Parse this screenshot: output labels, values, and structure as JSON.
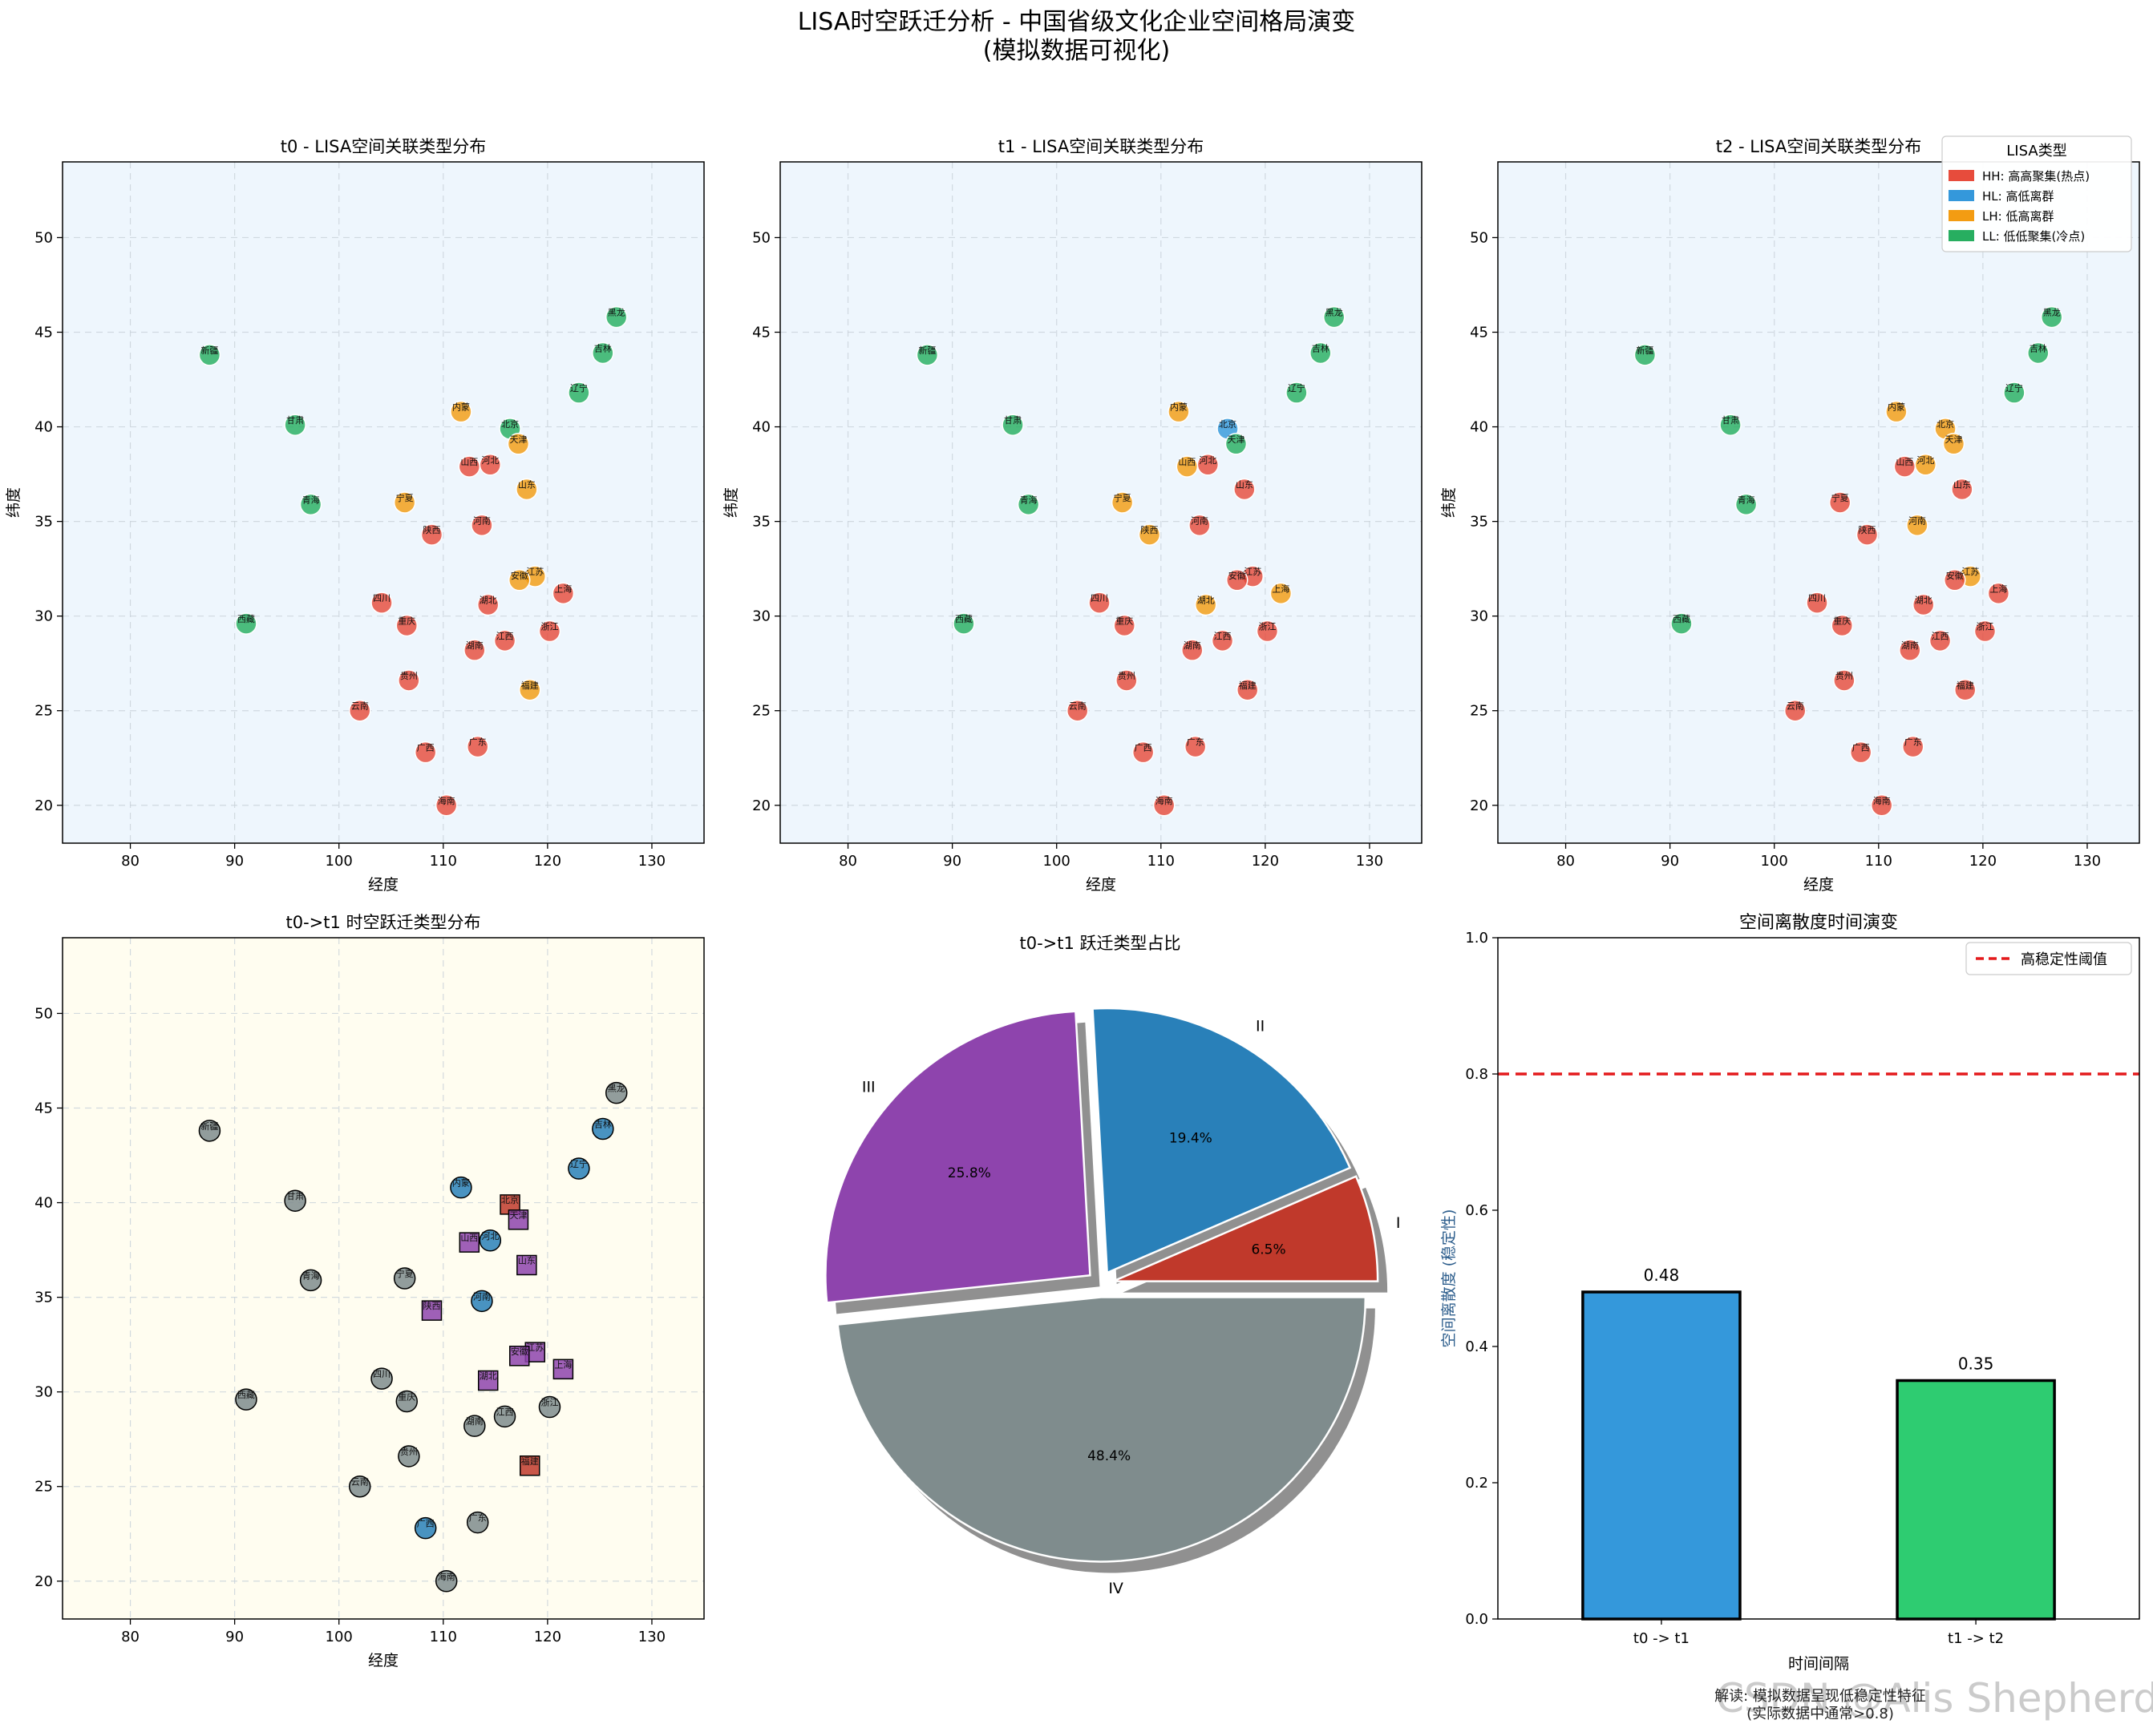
{
  "title_line1": "LISA时空跃迁分析 - 中国省级文化企业空间格局演变",
  "title_line2": "(模拟数据可视化)",
  "footnote_line1": "解读: 模拟数据呈现低稳定性特征",
  "footnote_line2": "(实际数据中通常>0.8)",
  "watermark": "CSDN @Alis Shepherd",
  "colors": {
    "HH": "#e74c3c",
    "HL": "#3498db",
    "LH": "#f39c12",
    "LL": "#27ae60",
    "I": "#c0392b",
    "II": "#2980b9",
    "III": "#8e44ad",
    "IV": "#7f8c8d"
  },
  "chart_data": [
    {
      "type": "scatter",
      "id": "t0",
      "title": "t0 - LISA空间关联类型分布",
      "xlabel": "经度",
      "ylabel": "纬度",
      "xlim": [
        73.5,
        135
      ],
      "ylim": [
        18,
        54
      ],
      "xticks": [
        80,
        90,
        100,
        110,
        120,
        130
      ],
      "yticks": [
        20,
        25,
        30,
        35,
        40,
        45,
        50
      ],
      "grid": true,
      "points": [
        {
          "name": "黑龙",
          "x": 126.6,
          "y": 45.8,
          "type": "LL"
        },
        {
          "name": "吉林",
          "x": 125.3,
          "y": 43.9,
          "type": "LL"
        },
        {
          "name": "辽宁",
          "x": 123.0,
          "y": 41.8,
          "type": "LL"
        },
        {
          "name": "新疆",
          "x": 87.6,
          "y": 43.8,
          "type": "LL"
        },
        {
          "name": "甘肃",
          "x": 95.8,
          "y": 40.1,
          "type": "LL"
        },
        {
          "name": "内蒙",
          "x": 111.7,
          "y": 40.8,
          "type": "LH"
        },
        {
          "name": "北京",
          "x": 116.4,
          "y": 39.9,
          "type": "LL"
        },
        {
          "name": "天津",
          "x": 117.2,
          "y": 39.1,
          "type": "LH"
        },
        {
          "name": "河北",
          "x": 114.5,
          "y": 38.0,
          "type": "HH"
        },
        {
          "name": "山西",
          "x": 112.5,
          "y": 37.9,
          "type": "HH"
        },
        {
          "name": "山东",
          "x": 118.0,
          "y": 36.7,
          "type": "LH"
        },
        {
          "name": "青海",
          "x": 97.3,
          "y": 35.9,
          "type": "LL"
        },
        {
          "name": "宁夏",
          "x": 106.3,
          "y": 36.0,
          "type": "LH"
        },
        {
          "name": "河南",
          "x": 113.7,
          "y": 34.8,
          "type": "HH"
        },
        {
          "name": "陕西",
          "x": 108.9,
          "y": 34.3,
          "type": "HH"
        },
        {
          "name": "江苏",
          "x": 118.8,
          "y": 32.1,
          "type": "LH"
        },
        {
          "name": "安徽",
          "x": 117.3,
          "y": 31.9,
          "type": "LH"
        },
        {
          "name": "上海",
          "x": 121.5,
          "y": 31.2,
          "type": "HH"
        },
        {
          "name": "四川",
          "x": 104.1,
          "y": 30.7,
          "type": "HH"
        },
        {
          "name": "湖北",
          "x": 114.3,
          "y": 30.6,
          "type": "HH"
        },
        {
          "name": "西藏",
          "x": 91.1,
          "y": 29.6,
          "type": "LL"
        },
        {
          "name": "重庆",
          "x": 106.5,
          "y": 29.5,
          "type": "HH"
        },
        {
          "name": "浙江",
          "x": 120.2,
          "y": 29.2,
          "type": "HH"
        },
        {
          "name": "江西",
          "x": 115.9,
          "y": 28.7,
          "type": "HH"
        },
        {
          "name": "湖南",
          "x": 113.0,
          "y": 28.2,
          "type": "HH"
        },
        {
          "name": "贵州",
          "x": 106.7,
          "y": 26.6,
          "type": "HH"
        },
        {
          "name": "福建",
          "x": 118.3,
          "y": 26.1,
          "type": "LH"
        },
        {
          "name": "云南",
          "x": 102.0,
          "y": 25.0,
          "type": "HH"
        },
        {
          "name": "广东",
          "x": 113.3,
          "y": 23.1,
          "type": "HH"
        },
        {
          "name": "广西",
          "x": 108.3,
          "y": 22.8,
          "type": "HH"
        },
        {
          "name": "海南",
          "x": 110.3,
          "y": 20.0,
          "type": "HH"
        }
      ]
    },
    {
      "type": "scatter",
      "id": "t1",
      "title": "t1 - LISA空间关联类型分布",
      "xlabel": "经度",
      "ylabel": "纬度",
      "xlim": [
        73.5,
        135
      ],
      "ylim": [
        18,
        54
      ],
      "xticks": [
        80,
        90,
        100,
        110,
        120,
        130
      ],
      "yticks": [
        20,
        25,
        30,
        35,
        40,
        45,
        50
      ],
      "grid": true,
      "points": [
        {
          "name": "黑龙",
          "x": 126.6,
          "y": 45.8,
          "type": "LL"
        },
        {
          "name": "吉林",
          "x": 125.3,
          "y": 43.9,
          "type": "LL"
        },
        {
          "name": "辽宁",
          "x": 123.0,
          "y": 41.8,
          "type": "LL"
        },
        {
          "name": "新疆",
          "x": 87.6,
          "y": 43.8,
          "type": "LL"
        },
        {
          "name": "甘肃",
          "x": 95.8,
          "y": 40.1,
          "type": "LL"
        },
        {
          "name": "内蒙",
          "x": 111.7,
          "y": 40.8,
          "type": "LH"
        },
        {
          "name": "北京",
          "x": 116.4,
          "y": 39.9,
          "type": "HL"
        },
        {
          "name": "天津",
          "x": 117.2,
          "y": 39.1,
          "type": "LL"
        },
        {
          "name": "河北",
          "x": 114.5,
          "y": 38.0,
          "type": "HH"
        },
        {
          "name": "山西",
          "x": 112.5,
          "y": 37.9,
          "type": "LH"
        },
        {
          "name": "山东",
          "x": 118.0,
          "y": 36.7,
          "type": "HH"
        },
        {
          "name": "青海",
          "x": 97.3,
          "y": 35.9,
          "type": "LL"
        },
        {
          "name": "宁夏",
          "x": 106.3,
          "y": 36.0,
          "type": "LH"
        },
        {
          "name": "河南",
          "x": 113.7,
          "y": 34.8,
          "type": "HH"
        },
        {
          "name": "陕西",
          "x": 108.9,
          "y": 34.3,
          "type": "LH"
        },
        {
          "name": "江苏",
          "x": 118.8,
          "y": 32.1,
          "type": "HH"
        },
        {
          "name": "安徽",
          "x": 117.3,
          "y": 31.9,
          "type": "HH"
        },
        {
          "name": "上海",
          "x": 121.5,
          "y": 31.2,
          "type": "LH"
        },
        {
          "name": "四川",
          "x": 104.1,
          "y": 30.7,
          "type": "HH"
        },
        {
          "name": "湖北",
          "x": 114.3,
          "y": 30.6,
          "type": "LH"
        },
        {
          "name": "西藏",
          "x": 91.1,
          "y": 29.6,
          "type": "LL"
        },
        {
          "name": "重庆",
          "x": 106.5,
          "y": 29.5,
          "type": "HH"
        },
        {
          "name": "浙江",
          "x": 120.2,
          "y": 29.2,
          "type": "HH"
        },
        {
          "name": "江西",
          "x": 115.9,
          "y": 28.7,
          "type": "HH"
        },
        {
          "name": "湖南",
          "x": 113.0,
          "y": 28.2,
          "type": "HH"
        },
        {
          "name": "贵州",
          "x": 106.7,
          "y": 26.6,
          "type": "HH"
        },
        {
          "name": "福建",
          "x": 118.3,
          "y": 26.1,
          "type": "HH"
        },
        {
          "name": "云南",
          "x": 102.0,
          "y": 25.0,
          "type": "HH"
        },
        {
          "name": "广东",
          "x": 113.3,
          "y": 23.1,
          "type": "HH"
        },
        {
          "name": "广西",
          "x": 108.3,
          "y": 22.8,
          "type": "HH"
        },
        {
          "name": "海南",
          "x": 110.3,
          "y": 20.0,
          "type": "HH"
        }
      ]
    },
    {
      "type": "scatter",
      "id": "t2",
      "title": "t2 - LISA空间关联类型分布",
      "xlabel": "经度",
      "ylabel": "纬度",
      "xlim": [
        73.5,
        135
      ],
      "ylim": [
        18,
        54
      ],
      "xticks": [
        80,
        90,
        100,
        110,
        120,
        130
      ],
      "yticks": [
        20,
        25,
        30,
        35,
        40,
        45,
        50
      ],
      "grid": true,
      "legend": {
        "title": "LISA类型",
        "placement": "top-right",
        "entries": [
          {
            "type": "HH",
            "label": "HH: 高高聚集(热点)"
          },
          {
            "type": "HL",
            "label": "HL: 高低离群"
          },
          {
            "type": "LH",
            "label": "LH: 低高离群"
          },
          {
            "type": "LL",
            "label": "LL: 低低聚集(冷点)"
          }
        ]
      },
      "points": [
        {
          "name": "黑龙",
          "x": 126.6,
          "y": 45.8,
          "type": "LL"
        },
        {
          "name": "吉林",
          "x": 125.3,
          "y": 43.9,
          "type": "LL"
        },
        {
          "name": "辽宁",
          "x": 123.0,
          "y": 41.8,
          "type": "LL"
        },
        {
          "name": "新疆",
          "x": 87.6,
          "y": 43.8,
          "type": "LL"
        },
        {
          "name": "甘肃",
          "x": 95.8,
          "y": 40.1,
          "type": "LL"
        },
        {
          "name": "内蒙",
          "x": 111.7,
          "y": 40.8,
          "type": "LH"
        },
        {
          "name": "北京",
          "x": 116.4,
          "y": 39.9,
          "type": "LH"
        },
        {
          "name": "天津",
          "x": 117.2,
          "y": 39.1,
          "type": "LH"
        },
        {
          "name": "河北",
          "x": 114.5,
          "y": 38.0,
          "type": "LH"
        },
        {
          "name": "山西",
          "x": 112.5,
          "y": 37.9,
          "type": "HH"
        },
        {
          "name": "山东",
          "x": 118.0,
          "y": 36.7,
          "type": "HH"
        },
        {
          "name": "青海",
          "x": 97.3,
          "y": 35.9,
          "type": "LL"
        },
        {
          "name": "宁夏",
          "x": 106.3,
          "y": 36.0,
          "type": "HH"
        },
        {
          "name": "河南",
          "x": 113.7,
          "y": 34.8,
          "type": "LH"
        },
        {
          "name": "陕西",
          "x": 108.9,
          "y": 34.3,
          "type": "HH"
        },
        {
          "name": "江苏",
          "x": 118.8,
          "y": 32.1,
          "type": "LH"
        },
        {
          "name": "安徽",
          "x": 117.3,
          "y": 31.9,
          "type": "HH"
        },
        {
          "name": "上海",
          "x": 121.5,
          "y": 31.2,
          "type": "HH"
        },
        {
          "name": "四川",
          "x": 104.1,
          "y": 30.7,
          "type": "HH"
        },
        {
          "name": "湖北",
          "x": 114.3,
          "y": 30.6,
          "type": "HH"
        },
        {
          "name": "西藏",
          "x": 91.1,
          "y": 29.6,
          "type": "LL"
        },
        {
          "name": "重庆",
          "x": 106.5,
          "y": 29.5,
          "type": "HH"
        },
        {
          "name": "浙江",
          "x": 120.2,
          "y": 29.2,
          "type": "HH"
        },
        {
          "name": "江西",
          "x": 115.9,
          "y": 28.7,
          "type": "HH"
        },
        {
          "name": "湖南",
          "x": 113.0,
          "y": 28.2,
          "type": "HH"
        },
        {
          "name": "贵州",
          "x": 106.7,
          "y": 26.6,
          "type": "HH"
        },
        {
          "name": "福建",
          "x": 118.3,
          "y": 26.1,
          "type": "HH"
        },
        {
          "name": "云南",
          "x": 102.0,
          "y": 25.0,
          "type": "HH"
        },
        {
          "name": "广东",
          "x": 113.3,
          "y": 23.1,
          "type": "HH"
        },
        {
          "name": "广西",
          "x": 108.3,
          "y": 22.8,
          "type": "HH"
        },
        {
          "name": "海南",
          "x": 110.3,
          "y": 20.0,
          "type": "HH"
        }
      ]
    },
    {
      "type": "scatter",
      "id": "trans",
      "title": "t0->t1 时空跃迁类型分布",
      "xlabel": "经度",
      "ylabel": "",
      "xlim": [
        73.5,
        135
      ],
      "ylim": [
        18,
        54
      ],
      "xticks": [
        80,
        90,
        100,
        110,
        120,
        130
      ],
      "yticks": [
        20,
        25,
        30,
        35,
        40,
        45,
        50
      ],
      "grid": true,
      "points": [
        {
          "name": "黑龙",
          "x": 126.6,
          "y": 45.8,
          "type": "IV"
        },
        {
          "name": "吉林",
          "x": 125.3,
          "y": 43.9,
          "type": "II"
        },
        {
          "name": "辽宁",
          "x": 123.0,
          "y": 41.8,
          "type": "II"
        },
        {
          "name": "新疆",
          "x": 87.6,
          "y": 43.8,
          "type": "IV"
        },
        {
          "name": "甘肃",
          "x": 95.8,
          "y": 40.1,
          "type": "IV"
        },
        {
          "name": "内蒙",
          "x": 111.7,
          "y": 40.8,
          "type": "II"
        },
        {
          "name": "北京",
          "x": 116.4,
          "y": 39.9,
          "type": "I"
        },
        {
          "name": "天津",
          "x": 117.2,
          "y": 39.1,
          "type": "III"
        },
        {
          "name": "河北",
          "x": 114.5,
          "y": 38.0,
          "type": "II"
        },
        {
          "name": "山西",
          "x": 112.5,
          "y": 37.9,
          "type": "III"
        },
        {
          "name": "山东",
          "x": 118.0,
          "y": 36.7,
          "type": "III"
        },
        {
          "name": "青海",
          "x": 97.3,
          "y": 35.9,
          "type": "IV"
        },
        {
          "name": "宁夏",
          "x": 106.3,
          "y": 36.0,
          "type": "IV"
        },
        {
          "name": "河南",
          "x": 113.7,
          "y": 34.8,
          "type": "II"
        },
        {
          "name": "陕西",
          "x": 108.9,
          "y": 34.3,
          "type": "III"
        },
        {
          "name": "江苏",
          "x": 118.8,
          "y": 32.1,
          "type": "III"
        },
        {
          "name": "安徽",
          "x": 117.3,
          "y": 31.9,
          "type": "III"
        },
        {
          "name": "上海",
          "x": 121.5,
          "y": 31.2,
          "type": "III"
        },
        {
          "name": "四川",
          "x": 104.1,
          "y": 30.7,
          "type": "IV"
        },
        {
          "name": "湖北",
          "x": 114.3,
          "y": 30.6,
          "type": "III"
        },
        {
          "name": "西藏",
          "x": 91.1,
          "y": 29.6,
          "type": "IV"
        },
        {
          "name": "重庆",
          "x": 106.5,
          "y": 29.5,
          "type": "IV"
        },
        {
          "name": "浙江",
          "x": 120.2,
          "y": 29.2,
          "type": "IV"
        },
        {
          "name": "江西",
          "x": 115.9,
          "y": 28.7,
          "type": "IV"
        },
        {
          "name": "湖南",
          "x": 113.0,
          "y": 28.2,
          "type": "IV"
        },
        {
          "name": "贵州",
          "x": 106.7,
          "y": 26.6,
          "type": "IV"
        },
        {
          "name": "福建",
          "x": 118.3,
          "y": 26.1,
          "type": "I"
        },
        {
          "name": "云南",
          "x": 102.0,
          "y": 25.0,
          "type": "IV"
        },
        {
          "name": "广东",
          "x": 113.3,
          "y": 23.1,
          "type": "IV"
        },
        {
          "name": "广西",
          "x": 108.3,
          "y": 22.8,
          "type": "II"
        },
        {
          "name": "海南",
          "x": 110.3,
          "y": 20.0,
          "type": "IV"
        }
      ]
    },
    {
      "type": "pie",
      "id": "pie",
      "title": "t0->t1 跃迁类型占比",
      "slices": [
        {
          "label": "I",
          "value": 6.5,
          "pct": "6.5%"
        },
        {
          "label": "II",
          "value": 19.4,
          "pct": "19.4%"
        },
        {
          "label": "III",
          "value": 25.8,
          "pct": "25.8%"
        },
        {
          "label": "IV",
          "value": 48.4,
          "pct": "48.4%"
        }
      ]
    },
    {
      "type": "bar",
      "id": "bar",
      "title": "空间离散度时间演变",
      "xlabel": "时间间隔",
      "ylabel": "空间离散度 (稳定性)",
      "categories": [
        "t0 -> t1",
        "t1 -> t2"
      ],
      "values": [
        0.48,
        0.35
      ],
      "value_labels": [
        "0.48",
        "0.35"
      ],
      "bar_colors": [
        "#3498db",
        "#2ecc71"
      ],
      "ylim": [
        0,
        1.0
      ],
      "yticks": [
        "0.0",
        "0.2",
        "0.4",
        "0.6",
        "0.8",
        "1.0"
      ],
      "threshold": {
        "value": 0.8,
        "label": "高稳定性阈值",
        "color": "#e41a1c"
      },
      "legend_placement": "top-right"
    }
  ]
}
